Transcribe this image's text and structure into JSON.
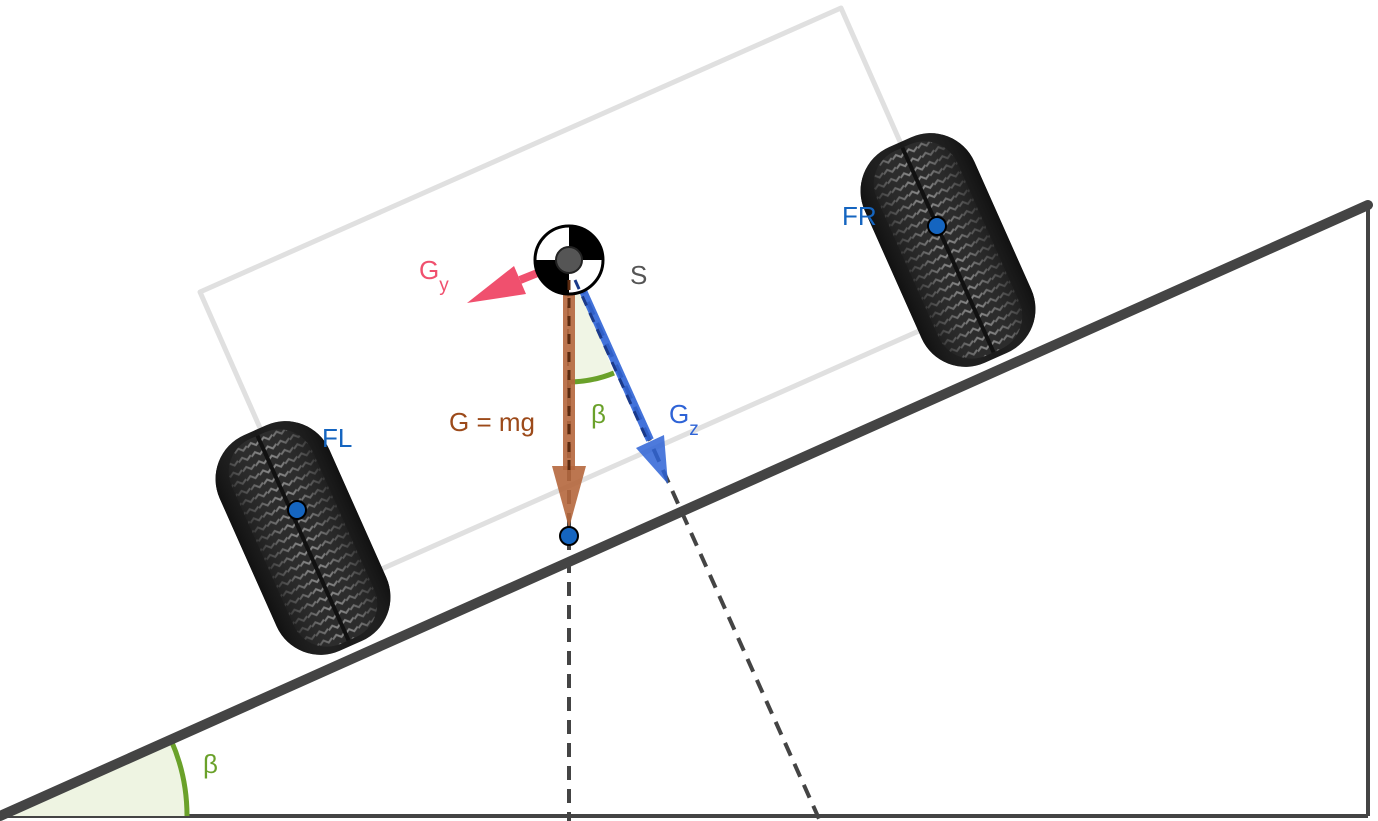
{
  "labels": {
    "fl": "FL",
    "fr": "FR",
    "s": "S",
    "weight": "G = mg",
    "gy_base": "G",
    "gy_sub": "y",
    "gz_base": "G",
    "gz_sub": "z",
    "beta_top": "β",
    "beta_bottom": "β"
  },
  "colors": {
    "ground": "#444444",
    "body_outline": "#e0e0e0",
    "weight_force": "#9c4a1a",
    "gz_force": "#2e63d6",
    "gy_force": "#f0506e",
    "angle": "#6aa12a",
    "angle_fill": "#eef4e2",
    "wheel_points": "#1565c0",
    "label_blue": "#1565c0",
    "label_gray": "#555555"
  },
  "icons": {
    "center_of_mass": "center-of-mass-symbol",
    "wheel": "tire-icon"
  }
}
